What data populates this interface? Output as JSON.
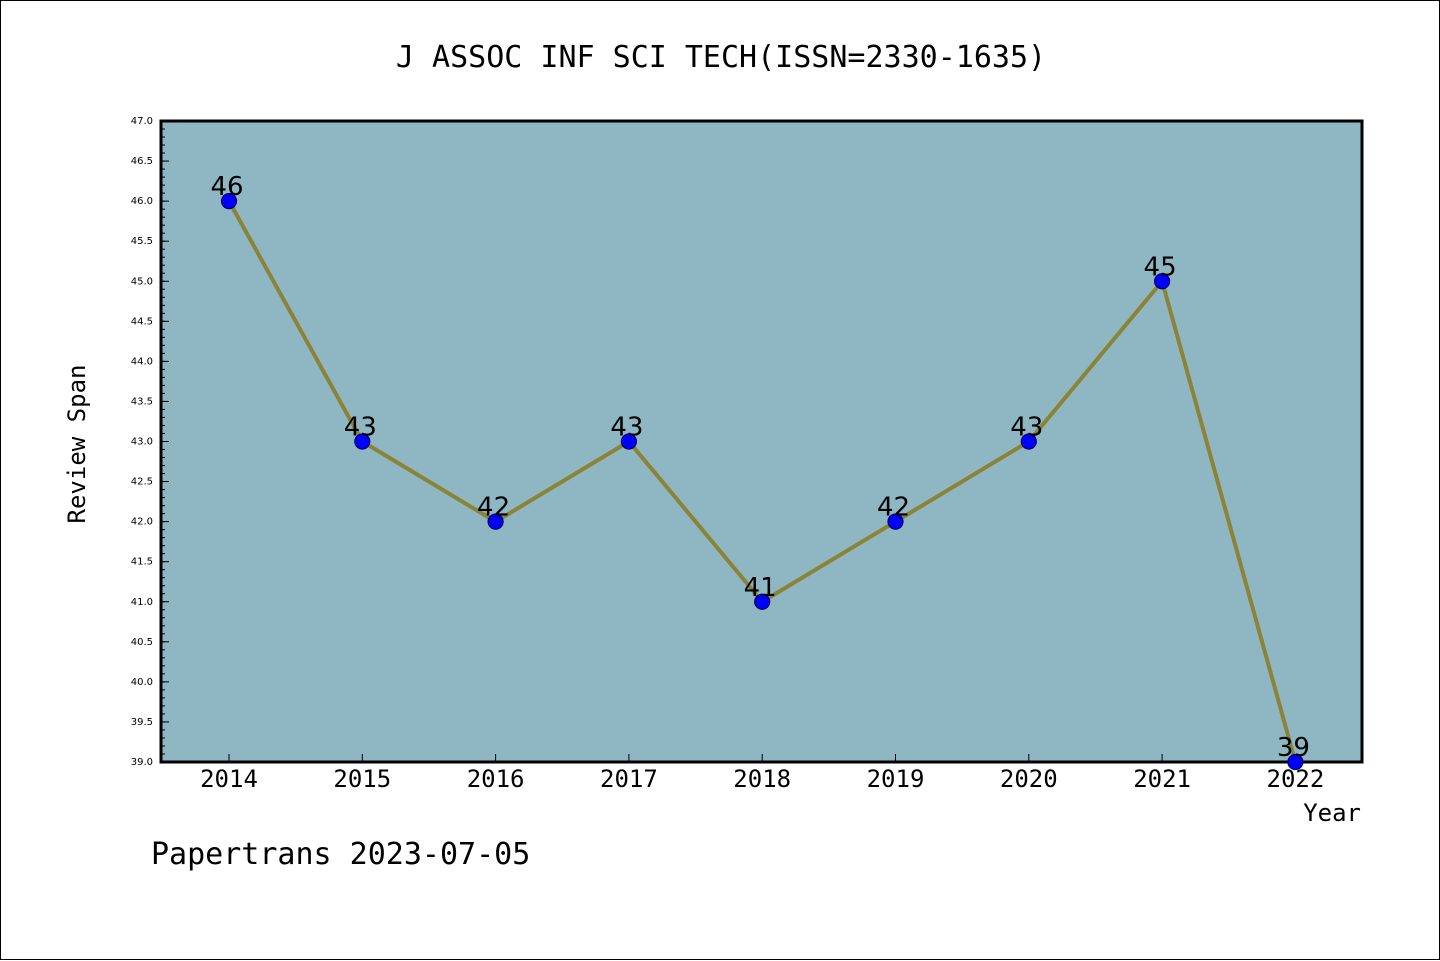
{
  "chart_data": {
    "type": "line",
    "title": "J ASSOC INF SCI TECH(ISSN=2330-1635)",
    "xlabel": "Year",
    "ylabel": "Review Span",
    "x": [
      "2014",
      "2015",
      "2016",
      "2017",
      "2018",
      "2019",
      "2020",
      "2021",
      "2022"
    ],
    "series": [
      {
        "values": [
          46,
          43,
          42,
          43,
          41,
          42,
          43,
          45,
          39
        ]
      }
    ],
    "data_labels": [
      "46",
      "43",
      "42",
      "43",
      "41",
      "42",
      "43",
      "45",
      "39"
    ],
    "ylim": [
      39.0,
      47.0
    ],
    "yticks": [
      "39.0",
      "39.5",
      "40.0",
      "40.5",
      "41.0",
      "41.5",
      "42.0",
      "42.5",
      "43.0",
      "43.5",
      "44.0",
      "44.5",
      "45.0",
      "45.5",
      "46.0",
      "46.5",
      "47.0"
    ],
    "grid": false,
    "legend": "none",
    "colors": {
      "plot_background": "#8fb6c3",
      "line": "#8b8436",
      "marker": "#0000ff",
      "marker_edge": "#000066"
    }
  },
  "footer": "Papertrans 2023-07-05"
}
